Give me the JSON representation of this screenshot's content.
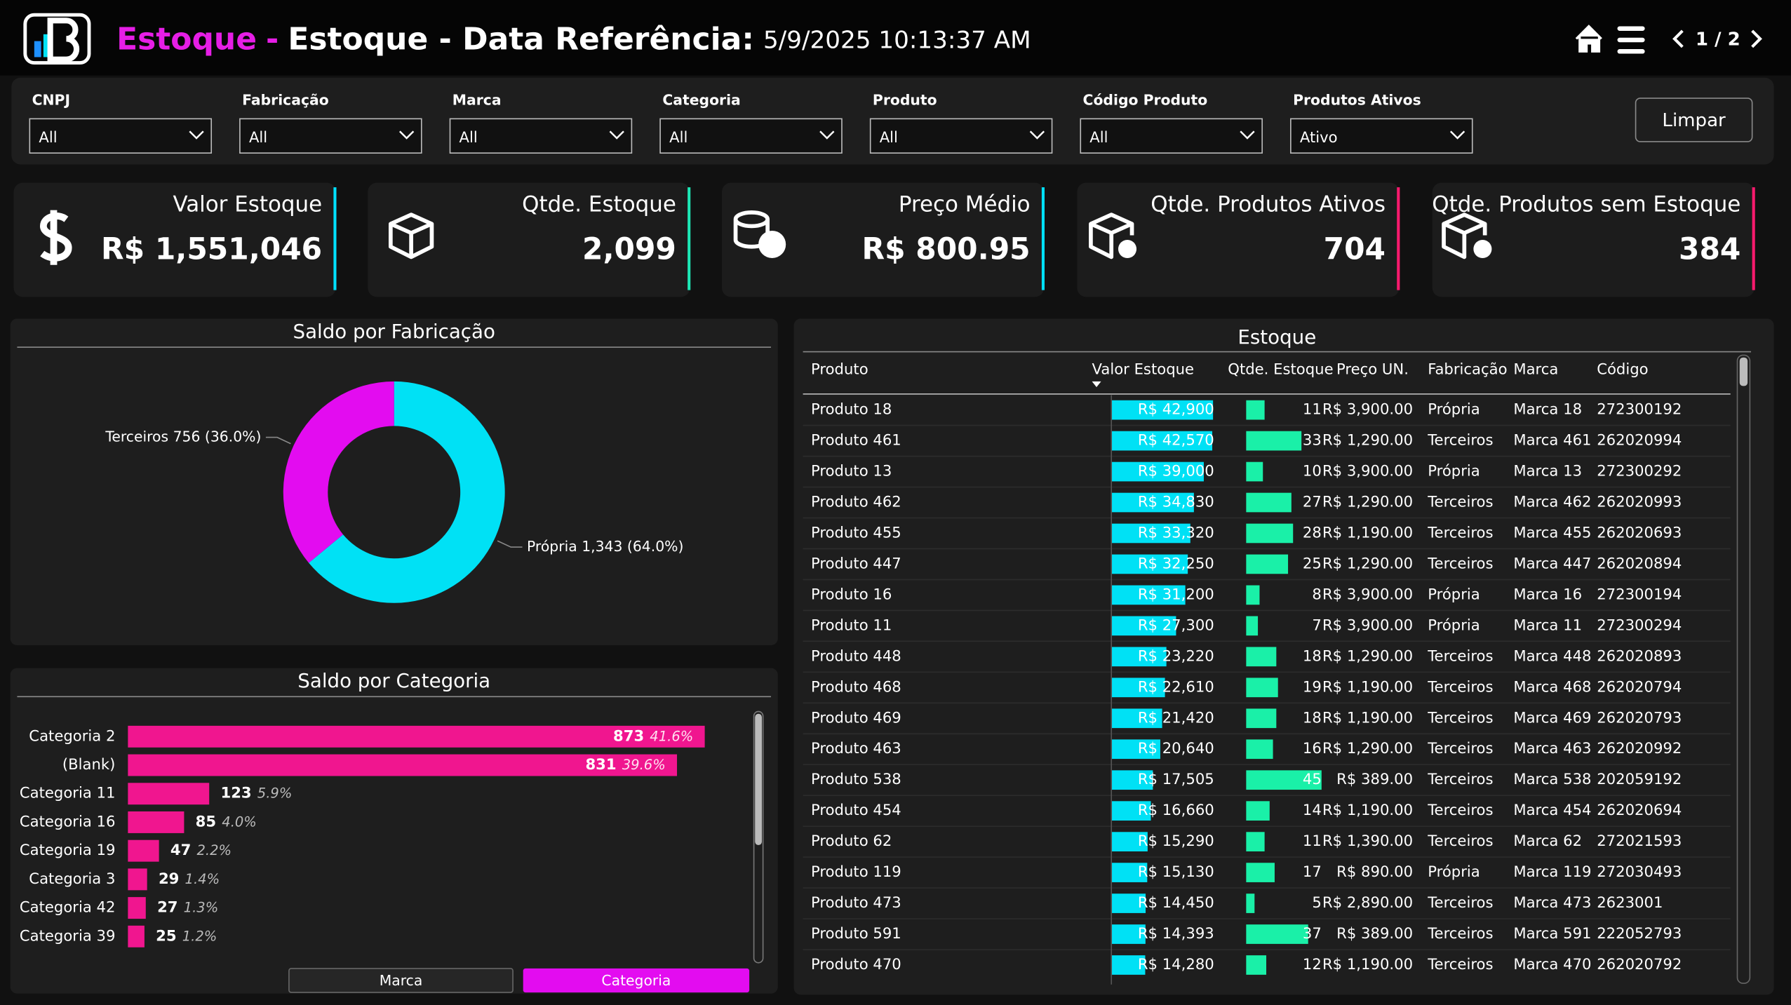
{
  "header": {
    "page_name": "Estoque",
    "separator": "-",
    "title": "Estoque - Data Referência:",
    "date": "5/9/2025 10:13:37 AM",
    "page_nav": "1 / 2"
  },
  "filters": [
    {
      "label": "CNPJ",
      "value": "All"
    },
    {
      "label": "Fabricação",
      "value": "All"
    },
    {
      "label": "Marca",
      "value": "All"
    },
    {
      "label": "Categoria",
      "value": "All"
    },
    {
      "label": "Produto",
      "value": "All"
    },
    {
      "label": "Código Produto",
      "value": "All"
    },
    {
      "label": "Produtos Ativos",
      "value": "Ativo"
    }
  ],
  "clear_button": "Limpar",
  "kpis": [
    {
      "label": "Valor Estoque",
      "value": "R$ 1,551,046",
      "color": "#00e1ff"
    },
    {
      "label": "Qtde. Estoque",
      "value": "2,099",
      "color": "#1de9b6"
    },
    {
      "label": "Preço Médio",
      "value": "R$ 800.95",
      "color": "#00e1ff"
    },
    {
      "label": "Qtde. Produtos Ativos",
      "value": "704",
      "color": "#ff1a6e"
    },
    {
      "label": "Qtde. Produtos sem Estoque",
      "value": "384",
      "color": "#ff1a6e"
    }
  ],
  "chart_data": [
    {
      "type": "pie",
      "title": "Saldo por Fabricação",
      "categories": [
        "Própria",
        "Terceiros"
      ],
      "values": [
        1343,
        756
      ],
      "value_labels": [
        "1,343 (64.0%)",
        "756 (36.0%)"
      ],
      "colors": [
        "#00e1f5",
        "#e30cf0"
      ]
    },
    {
      "type": "bar",
      "orientation": "horizontal",
      "title": "Saldo por Categoria",
      "categories": [
        "Categoria 2",
        "(Blank)",
        "Categoria 11",
        "Categoria 16",
        "Categoria 19",
        "Categoria 3",
        "Categoria 42",
        "Categoria 39"
      ],
      "values": [
        873,
        831,
        123,
        85,
        47,
        29,
        27,
        25
      ],
      "share_labels": [
        "41.6%",
        "39.6%",
        "5.9%",
        "4.0%",
        "2.2%",
        "1.4%",
        "1.3%",
        "1.2%"
      ],
      "xlim": [
        0,
        873
      ],
      "color": "#f0168f",
      "toggles": [
        "Marca",
        "Categoria"
      ]
    }
  ],
  "table": {
    "title": "Estoque",
    "columns": [
      "Produto",
      "Valor Estoque",
      "Qtde. Estoque",
      "Preço UN.",
      "Fabricação",
      "Marca",
      "Código"
    ],
    "valor_bar_color": "#00e1f5",
    "qtde_bar_color": "#1af0a8",
    "rows": [
      {
        "produto": "Produto 18",
        "valor": 42900,
        "valor_label": "R$ 42,900",
        "qtde": 11,
        "preco": "R$ 3,900.00",
        "fabricacao": "Própria",
        "marca": "Marca 18",
        "codigo": "272300192"
      },
      {
        "produto": "Produto 461",
        "valor": 42570,
        "valor_label": "R$ 42,570",
        "qtde": 33,
        "preco": "R$ 1,290.00",
        "fabricacao": "Terceiros",
        "marca": "Marca 461",
        "codigo": "262020994"
      },
      {
        "produto": "Produto 13",
        "valor": 39000,
        "valor_label": "R$ 39,000",
        "qtde": 10,
        "preco": "R$ 3,900.00",
        "fabricacao": "Própria",
        "marca": "Marca 13",
        "codigo": "272300292"
      },
      {
        "produto": "Produto 462",
        "valor": 34830,
        "valor_label": "R$ 34,830",
        "qtde": 27,
        "preco": "R$ 1,290.00",
        "fabricacao": "Terceiros",
        "marca": "Marca 462",
        "codigo": "262020993"
      },
      {
        "produto": "Produto 455",
        "valor": 33320,
        "valor_label": "R$ 33,320",
        "qtde": 28,
        "preco": "R$ 1,190.00",
        "fabricacao": "Terceiros",
        "marca": "Marca 455",
        "codigo": "262020693"
      },
      {
        "produto": "Produto 447",
        "valor": 32250,
        "valor_label": "R$ 32,250",
        "qtde": 25,
        "preco": "R$ 1,290.00",
        "fabricacao": "Terceiros",
        "marca": "Marca 447",
        "codigo": "262020894"
      },
      {
        "produto": "Produto 16",
        "valor": 31200,
        "valor_label": "R$ 31,200",
        "qtde": 8,
        "preco": "R$ 3,900.00",
        "fabricacao": "Própria",
        "marca": "Marca 16",
        "codigo": "272300194"
      },
      {
        "produto": "Produto 11",
        "valor": 27300,
        "valor_label": "R$ 27,300",
        "qtde": 7,
        "preco": "R$ 3,900.00",
        "fabricacao": "Própria",
        "marca": "Marca 11",
        "codigo": "272300294"
      },
      {
        "produto": "Produto 448",
        "valor": 23220,
        "valor_label": "R$ 23,220",
        "qtde": 18,
        "preco": "R$ 1,290.00",
        "fabricacao": "Terceiros",
        "marca": "Marca 448",
        "codigo": "262020893"
      },
      {
        "produto": "Produto 468",
        "valor": 22610,
        "valor_label": "R$ 22,610",
        "qtde": 19,
        "preco": "R$ 1,190.00",
        "fabricacao": "Terceiros",
        "marca": "Marca 468",
        "codigo": "262020794"
      },
      {
        "produto": "Produto 469",
        "valor": 21420,
        "valor_label": "R$ 21,420",
        "qtde": 18,
        "preco": "R$ 1,190.00",
        "fabricacao": "Terceiros",
        "marca": "Marca 469",
        "codigo": "262020793"
      },
      {
        "produto": "Produto 463",
        "valor": 20640,
        "valor_label": "R$ 20,640",
        "qtde": 16,
        "preco": "R$ 1,290.00",
        "fabricacao": "Terceiros",
        "marca": "Marca 463",
        "codigo": "262020992"
      },
      {
        "produto": "Produto 538",
        "valor": 17505,
        "valor_label": "R$ 17,505",
        "qtde": 45,
        "preco": "R$ 389.00",
        "fabricacao": "Terceiros",
        "marca": "Marca 538",
        "codigo": "202059192"
      },
      {
        "produto": "Produto 454",
        "valor": 16660,
        "valor_label": "R$ 16,660",
        "qtde": 14,
        "preco": "R$ 1,190.00",
        "fabricacao": "Terceiros",
        "marca": "Marca 454",
        "codigo": "262020694"
      },
      {
        "produto": "Produto 62",
        "valor": 15290,
        "valor_label": "R$ 15,290",
        "qtde": 11,
        "preco": "R$ 1,390.00",
        "fabricacao": "Terceiros",
        "marca": "Marca 62",
        "codigo": "272021593"
      },
      {
        "produto": "Produto 119",
        "valor": 15130,
        "valor_label": "R$ 15,130",
        "qtde": 17,
        "preco": "R$ 890.00",
        "fabricacao": "Própria",
        "marca": "Marca 119",
        "codigo": "272030493"
      },
      {
        "produto": "Produto 473",
        "valor": 14450,
        "valor_label": "R$ 14,450",
        "qtde": 5,
        "preco": "R$ 2,890.00",
        "fabricacao": "Terceiros",
        "marca": "Marca 473",
        "codigo": "2623001"
      },
      {
        "produto": "Produto 591",
        "valor": 14393,
        "valor_label": "R$ 14,393",
        "qtde": 37,
        "preco": "R$ 389.00",
        "fabricacao": "Terceiros",
        "marca": "Marca 591",
        "codigo": "222052793"
      },
      {
        "produto": "Produto 470",
        "valor": 14280,
        "valor_label": "R$ 14,280",
        "qtde": 12,
        "preco": "R$ 1,190.00",
        "fabricacao": "Terceiros",
        "marca": "Marca 470",
        "codigo": "262020792"
      }
    ]
  }
}
